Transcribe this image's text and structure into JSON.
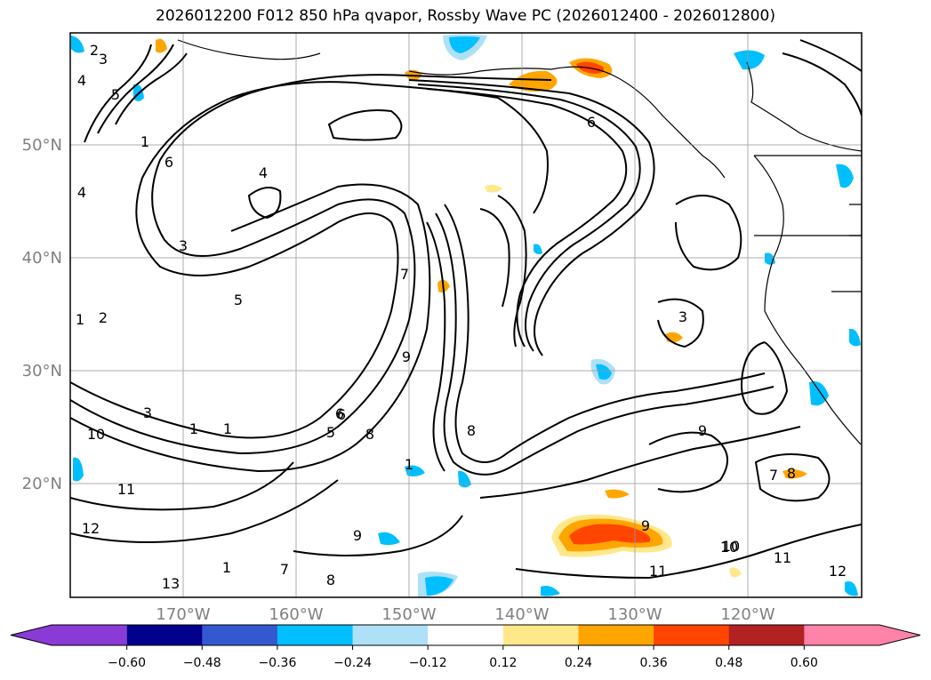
{
  "title": "2026012200 F012 850 hPa qvapor, Rossby Wave PC (2026012400 - 2026012800)",
  "lon_labels": [
    "170°W",
    "160°W",
    "150°W",
    "140°W",
    "130°W",
    "120°W"
  ],
  "lat_labels": [
    "50°N",
    "40°N",
    "30°N",
    "20°N"
  ],
  "colorbar": {
    "colors": [
      "#8a3bd6",
      "#00008c",
      "#3358d0",
      "#00bfff",
      "#aee0f8",
      "#ffffff",
      "#ffe88a",
      "#ffa500",
      "#ff4500",
      "#b22222",
      "#ff82a8"
    ],
    "tick_labels": [
      "−0.60",
      "−0.48",
      "−0.36",
      "−0.24",
      "−0.12",
      "0.12",
      "0.24",
      "0.36",
      "0.48",
      "0.60"
    ]
  },
  "contour_labels": [
    "2",
    "3",
    "4",
    "5",
    "1",
    "6",
    "4",
    "3",
    "1",
    "4",
    "5",
    "1",
    "2",
    "1",
    "3",
    "6",
    "5",
    "6",
    "7",
    "8",
    "9",
    "10",
    "11",
    "12",
    "13",
    "8",
    "9",
    "10",
    "11",
    "1",
    "3",
    "6",
    "7",
    "8",
    "9",
    "1",
    "7",
    "8",
    "9",
    "10",
    "11",
    "12"
  ],
  "colors": {
    "line": "#000000",
    "grid": "#999999",
    "axis_text": "#808080"
  }
}
